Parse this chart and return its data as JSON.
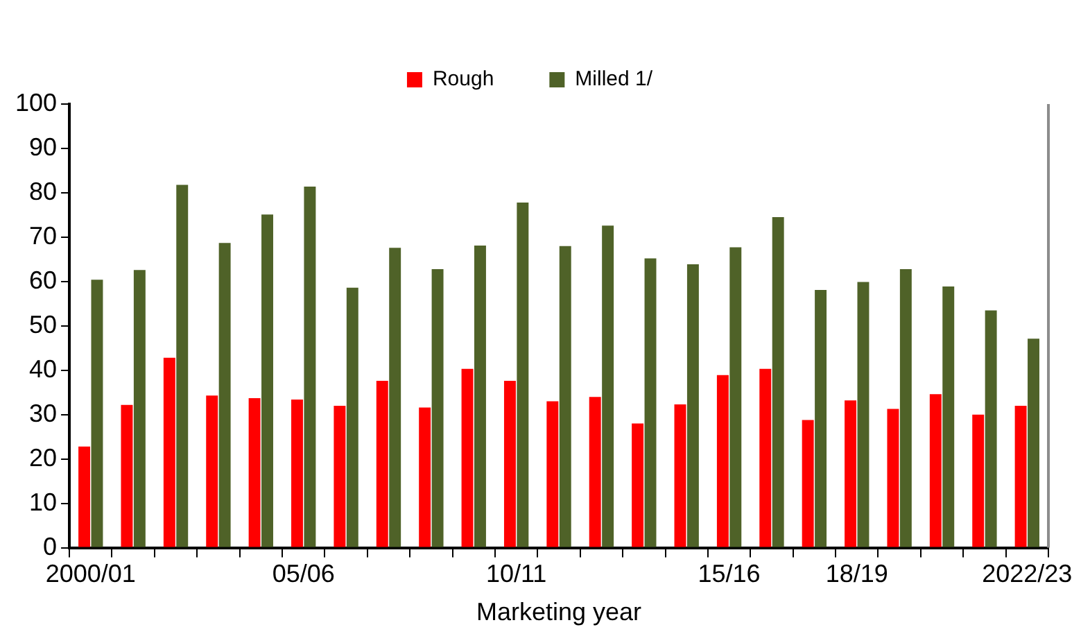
{
  "chart_data": {
    "type": "bar",
    "xlabel": "Marketing year",
    "categories": [
      "2000/01",
      null,
      null,
      null,
      null,
      "05/06",
      null,
      null,
      null,
      null,
      "10/11",
      null,
      null,
      null,
      null,
      "15/16",
      null,
      null,
      "18/19",
      null,
      null,
      null,
      "2022/23"
    ],
    "series": [
      {
        "name": "Rough",
        "color": "#ff0000",
        "values": [
          22.8,
          32.2,
          42.8,
          34.3,
          33.7,
          33.4,
          32.0,
          37.6,
          31.6,
          40.3,
          37.6,
          33.0,
          34.0,
          28.0,
          32.3,
          38.9,
          40.3,
          28.8,
          33.2,
          31.3,
          34.6,
          30.0,
          32.0
        ]
      },
      {
        "name": "Milled 1/",
        "color": "#4f6228",
        "values": [
          60.4,
          62.6,
          81.8,
          68.7,
          75.1,
          81.4,
          58.6,
          67.6,
          62.8,
          68.1,
          77.8,
          68.0,
          72.6,
          65.2,
          63.9,
          67.7,
          74.5,
          58.1,
          59.9,
          62.8,
          58.9,
          53.5,
          47.1
        ]
      }
    ],
    "ylim": [
      0,
      100
    ],
    "yticks": [
      0,
      10,
      20,
      30,
      40,
      50,
      60,
      70,
      80,
      90,
      100
    ],
    "grid": false,
    "legend": "top"
  }
}
